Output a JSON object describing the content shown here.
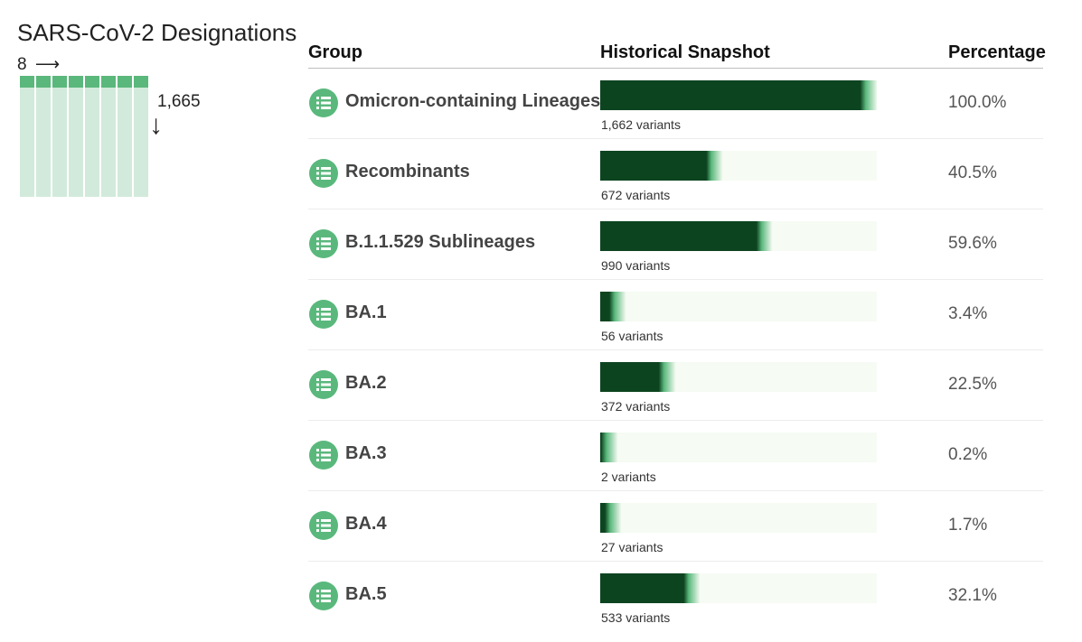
{
  "sidebar": {
    "title": "SARS-CoV-2 Designations",
    "column_count": "8",
    "column_arrow": "⟶",
    "row_count": "1,665",
    "row_arrow": "↓",
    "mini_columns": 8
  },
  "table": {
    "headers": {
      "group": "Group",
      "snapshot": "Historical Snapshot",
      "percentage": "Percentage"
    },
    "icon": "list-icon",
    "rows": [
      {
        "name": "Omicron-containing Lineages",
        "variants": "1,662 variants",
        "percentage": "100.0%",
        "fraction": 1.0
      },
      {
        "name": "Recombinants",
        "variants": "672 variants",
        "percentage": "40.5%",
        "fraction": 0.405
      },
      {
        "name": "B.1.1.529 Sublineages",
        "variants": "990 variants",
        "percentage": "59.6%",
        "fraction": 0.596
      },
      {
        "name": "BA.1",
        "variants": "56 variants",
        "percentage": "3.4%",
        "fraction": 0.034
      },
      {
        "name": "BA.2",
        "variants": "372 variants",
        "percentage": "22.5%",
        "fraction": 0.225
      },
      {
        "name": "BA.3",
        "variants": "2 variants",
        "percentage": "0.2%",
        "fraction": 0.002
      },
      {
        "name": "BA.4",
        "variants": "27 variants",
        "percentage": "1.7%",
        "fraction": 0.017
      },
      {
        "name": "BA.5",
        "variants": "533 variants",
        "percentage": "32.1%",
        "fraction": 0.321
      }
    ]
  },
  "colors": {
    "bar_dark": "#0d4420",
    "bar_track": "#f6fbf4",
    "icon_bg": "#5ab87c",
    "mini_grid": "#d2eadb"
  }
}
